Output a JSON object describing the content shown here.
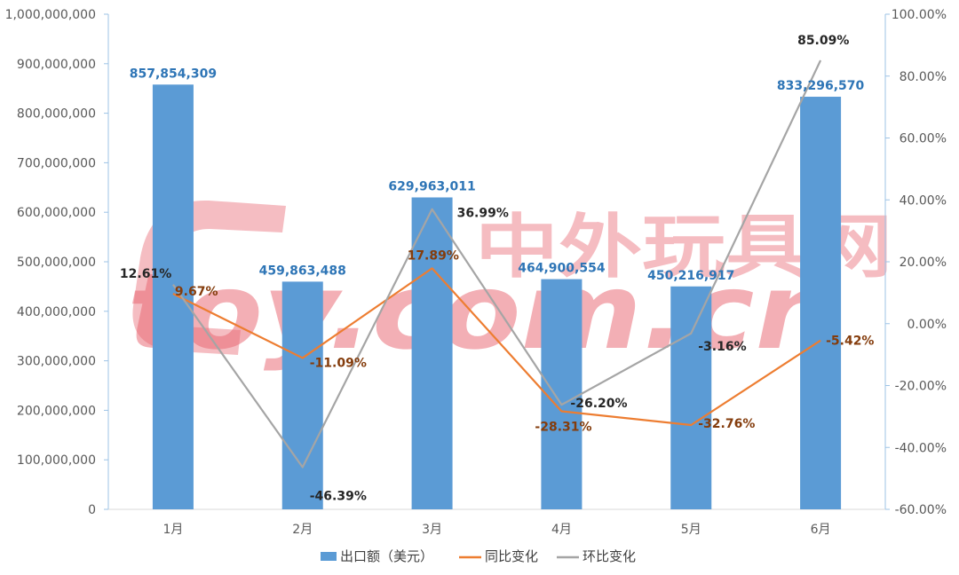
{
  "watermark": {
    "brand_text": "toy.com.cn",
    "cn_text": "中外玩具网",
    "color": "#e8626e"
  },
  "chart_data": {
    "type": "bar",
    "categories": [
      "1月",
      "2月",
      "3月",
      "4月",
      "5月",
      "6月"
    ],
    "ylim": [
      0,
      1000000000
    ],
    "y_ticks": [
      "1,000,000,000",
      "900,000,000",
      "800,000,000",
      "700,000,000",
      "600,000,000",
      "500,000,000",
      "400,000,000",
      "300,000,000",
      "200,000,000",
      "100,000,000",
      "0"
    ],
    "y2lim": [
      -0.6,
      1.0
    ],
    "y2_ticks": [
      "100.00%",
      "80.00%",
      "60.00%",
      "40.00%",
      "20.00%",
      "0.00%",
      "-20.00%",
      "-40.00%",
      "-60.00%"
    ],
    "grid": false,
    "legend_position": "bottom",
    "series": [
      {
        "name": "出口额（美元）",
        "type": "bar",
        "axis": "left",
        "color": "#5b9bd5",
        "label_color": "#2e75b6",
        "values": [
          857854309,
          459863488,
          629963011,
          464900554,
          450216917,
          833296570
        ],
        "labels": [
          "857,854,309",
          "459,863,488",
          "629,963,011",
          "464,900,554",
          "450,216,917",
          "833,296,570"
        ]
      },
      {
        "name": "同比变化",
        "type": "line",
        "axis": "right",
        "color": "#ed7d31",
        "label_color": "#843c0c",
        "values": [
          0.0967,
          -0.1109,
          0.1789,
          -0.2831,
          -0.3276,
          -0.0542
        ],
        "labels": [
          "9.67%",
          "-11.09%",
          "17.89%",
          "-28.31%",
          "-32.76%",
          "-5.42%"
        ]
      },
      {
        "name": "环比变化",
        "type": "line",
        "axis": "right",
        "color": "#a5a5a5",
        "label_color": "#262626",
        "values": [
          0.1261,
          -0.4639,
          0.3699,
          -0.262,
          -0.0316,
          0.8509
        ],
        "labels": [
          "12.61%",
          "-46.39%",
          "36.99%",
          "-26.20%",
          "-3.16%",
          "85.09%"
        ]
      }
    ]
  }
}
